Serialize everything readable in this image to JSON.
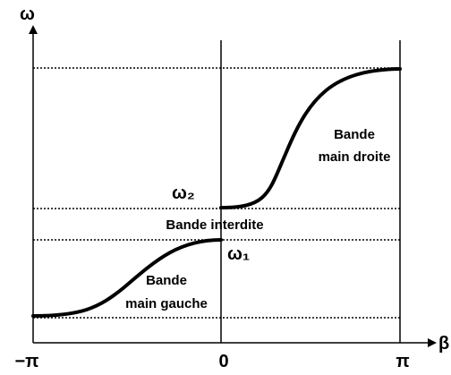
{
  "axes": {
    "y_label": "ω",
    "x_label": "β"
  },
  "ticks": [
    "−π",
    "0",
    "π"
  ],
  "levels": {
    "omega_2": "ω₂",
    "omega_1": "ω₁"
  },
  "bands": {
    "gap": "Bande interdite",
    "left": [
      "Bande",
      "main gauche"
    ],
    "right": [
      "Bande",
      "main droite"
    ]
  }
}
